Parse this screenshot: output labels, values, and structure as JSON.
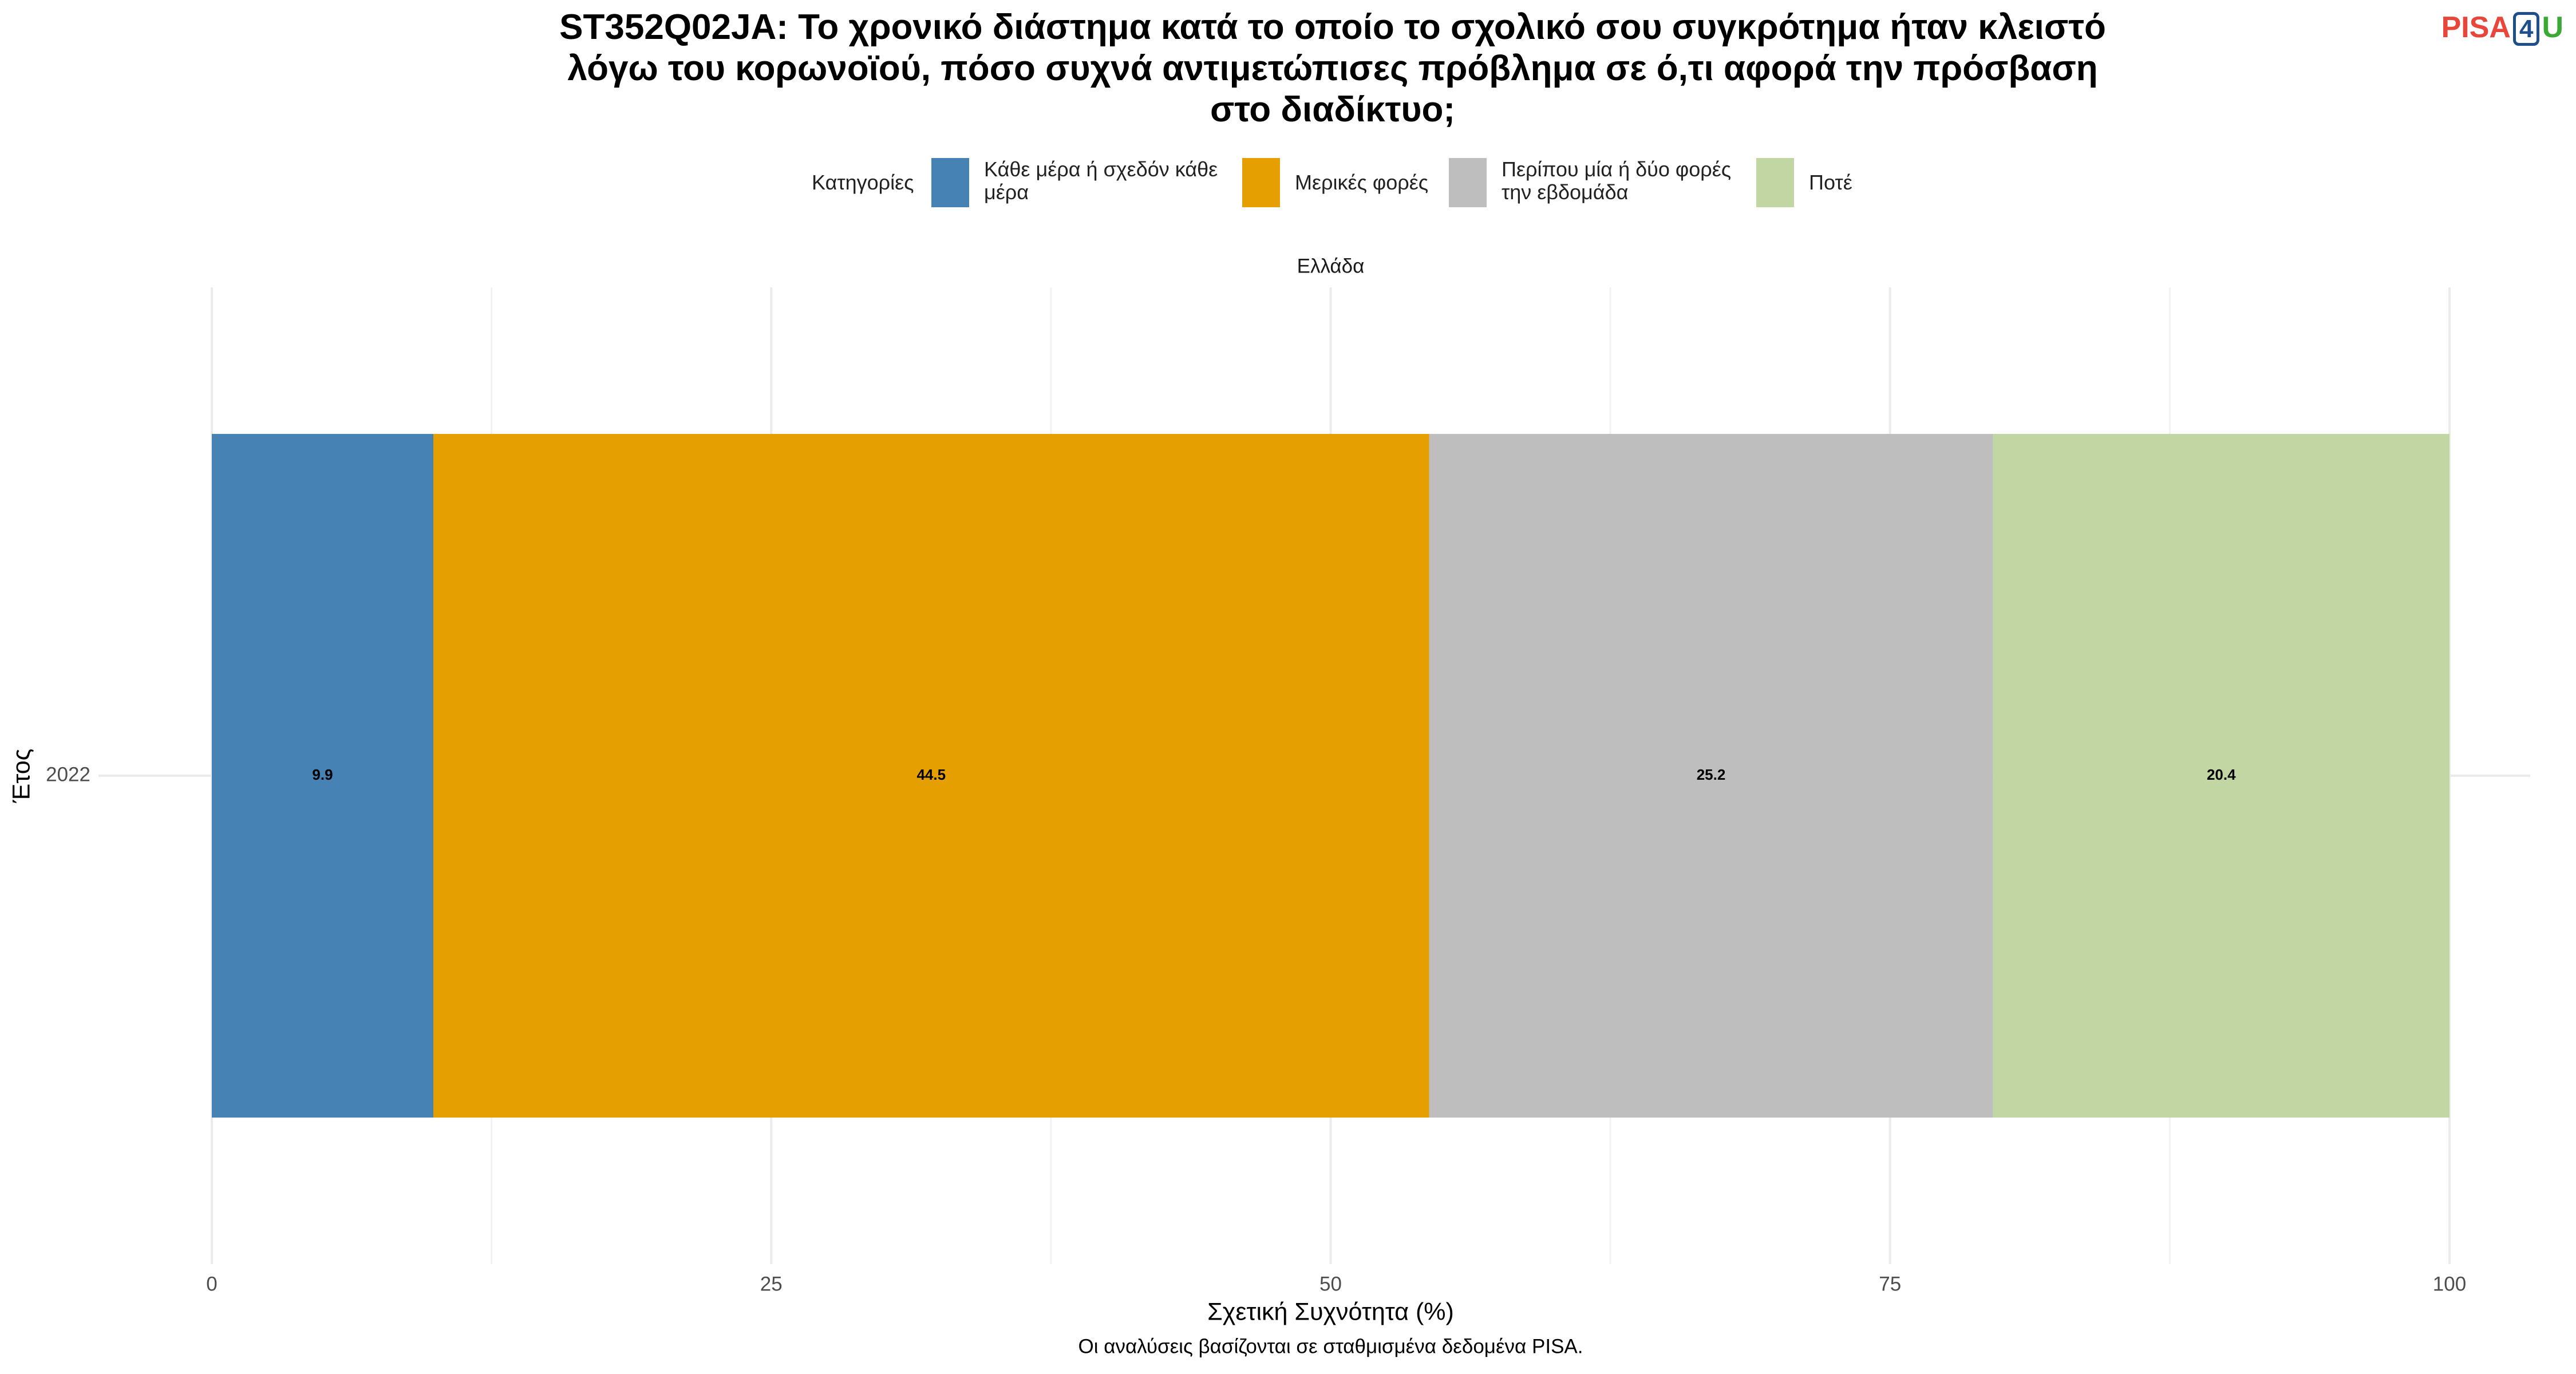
{
  "chart_data": {
    "type": "stacked-bar-horizontal",
    "title": "ST352Q02JA: Το χρονικό διάστημα κατά το οποίο το σχολικό σου συγκρότημα ήταν κλειστό λόγω του κορωνοϊού, πόσο συχνά αντιμετώπισες πρόβλημα σε ό,τι αφορά την πρόσβαση στο διαδίκτυο;",
    "legend_title": "Κατηγορίες",
    "facet": "Ελλάδα",
    "x_label": "Σχετική Συχνότητα (%)",
    "y_label": "Έτος",
    "caption": "Οι αναλύσεις βασίζονται σε σταθμισμένα δεδομένα PISA.",
    "categories": [
      "2022"
    ],
    "series": [
      {
        "name": "Κάθε μέρα ή σχεδόν κάθε μέρα",
        "color": "#4682b4",
        "values": [
          9.9
        ]
      },
      {
        "name": "Μερικές φορές",
        "color": "#e69f00",
        "values": [
          44.5
        ]
      },
      {
        "name": "Περίπου μία ή δύο φορές την εβδομάδα",
        "color": "#bebebe",
        "values": [
          25.2
        ]
      },
      {
        "name": "Ποτέ",
        "color": "#c2d6a4",
        "values": [
          20.4
        ]
      }
    ],
    "xlim": [
      0,
      100
    ],
    "xticks": [
      0,
      25,
      50,
      75,
      100
    ],
    "grid": true
  },
  "logo": {
    "part1": "PISA",
    "part2": "4",
    "part3": "U"
  }
}
